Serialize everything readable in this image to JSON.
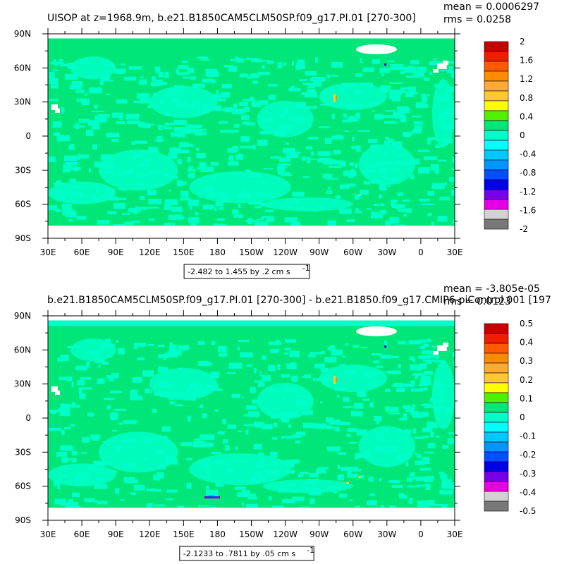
{
  "chart_data": [
    {
      "type": "heatmap",
      "title": "UISOP at z=1968.9m, b.e21.B1850CAM5CLM50SP.f09_g17.PI.01 [270-300]",
      "mean_label": "mean = 0.0006297",
      "rms_label": "rms = 0.0258",
      "range_label": "-2.482 to 1.455 by .2 cm s",
      "range_sup": "-1",
      "x_ticks": [
        "30E",
        "60E",
        "90E",
        "120E",
        "150E",
        "180",
        "150W",
        "120W",
        "90W",
        "60W",
        "30W",
        "0",
        "30E"
      ],
      "y_ticks": [
        "90N",
        "60N",
        "30N",
        "0",
        "30S",
        "60S",
        "90S"
      ],
      "colorbar_labels": [
        "2",
        "1.6",
        "1.2",
        "0.8",
        "0.4",
        "0",
        "-0.4",
        "-0.8",
        "-1.2",
        "-1.6",
        "-2"
      ],
      "colors": [
        "#c80000",
        "#f01e00",
        "#ff5a00",
        "#ff8c00",
        "#ffaa32",
        "#ffc832",
        "#ffff00",
        "#50f000",
        "#00e678",
        "#00ffc8",
        "#00ffff",
        "#00c8ff",
        "#0096ff",
        "#0050ff",
        "#0000e6",
        "#7800e6",
        "#e600e6",
        "#d2d2d2",
        "#787878"
      ],
      "dominant_fill": "#00e678",
      "secondary_fill": "#00ffc8"
    },
    {
      "type": "heatmap",
      "title": "b.e21.B1850CAM5CLM50SP.f09_g17.PI.01 [270-300] - b.e21.B1850.f09_g17.CMIP6-piControl.001 [197",
      "mean_label": "mean = -3.805e-05",
      "rms_label": "rms = 0.0123",
      "range_label": "-2.1233 to .7811 by .05 cm s",
      "range_sup": "-1",
      "x_ticks": [
        "30E",
        "60E",
        "90E",
        "120E",
        "150E",
        "180",
        "150W",
        "120W",
        "90W",
        "60W",
        "30W",
        "0",
        "30E"
      ],
      "y_ticks": [
        "90N",
        "60N",
        "30N",
        "0",
        "30S",
        "60S",
        "90S"
      ],
      "colorbar_labels": [
        "0.5",
        "0.4",
        "0.3",
        "0.2",
        "0.1",
        "0",
        "-0.1",
        "-0.2",
        "-0.3",
        "-0.4",
        "-0.5"
      ],
      "colors": [
        "#c80000",
        "#f01e00",
        "#ff5a00",
        "#ff8c00",
        "#ffaa32",
        "#ffc832",
        "#ffff00",
        "#50f000",
        "#00e678",
        "#00ffc8",
        "#00ffff",
        "#00c8ff",
        "#0096ff",
        "#0050ff",
        "#0000e6",
        "#7800e6",
        "#e600e6",
        "#d2d2d2",
        "#787878"
      ],
      "dominant_fill": "#00e678",
      "secondary_fill": "#00ffc8"
    }
  ]
}
